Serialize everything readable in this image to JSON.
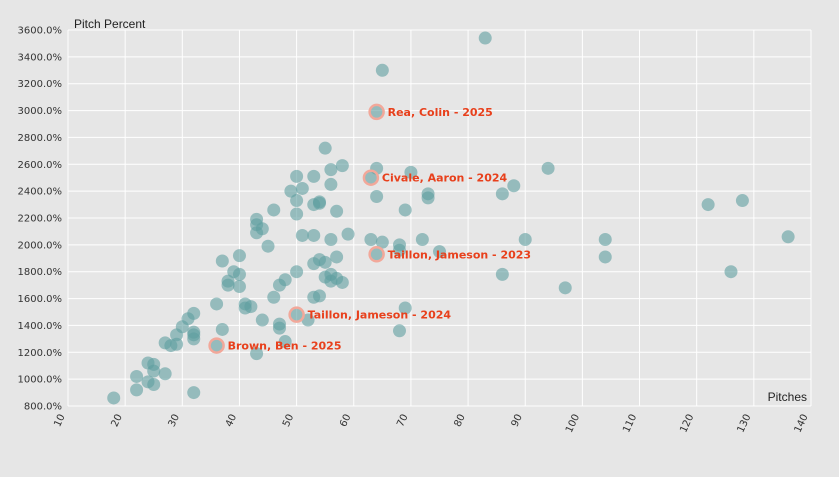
{
  "chart_data": {
    "type": "scatter",
    "title": "",
    "xlabel": "Pitches",
    "ylabel": "Pitch Percent",
    "xlim": [
      10,
      140
    ],
    "ylim": [
      800,
      3600
    ],
    "x_ticks": [
      "10",
      "20",
      "30",
      "40",
      "50",
      "60",
      "70",
      "80",
      "90",
      "100",
      "110",
      "120",
      "130",
      "140"
    ],
    "y_ticks": [
      "800.0%",
      "1000.0%",
      "1200.0%",
      "1400.0%",
      "1600.0%",
      "1800.0%",
      "2000.0%",
      "2200.0%",
      "2400.0%",
      "2600.0%",
      "2800.0%",
      "3000.0%",
      "3200.0%",
      "3400.0%",
      "3600.0%"
    ],
    "grid": true,
    "colors": {
      "point": "#5f9ea0",
      "highlight_ring": "#f2a89a",
      "highlight_text": "#e8401c"
    },
    "points": [
      [
        18,
        860
      ],
      [
        22,
        920
      ],
      [
        22,
        1020
      ],
      [
        24,
        980
      ],
      [
        24,
        1120
      ],
      [
        25,
        960
      ],
      [
        25,
        1060
      ],
      [
        25,
        1110
      ],
      [
        27,
        1040
      ],
      [
        27,
        1270
      ],
      [
        28,
        1250
      ],
      [
        29,
        1260
      ],
      [
        29,
        1330
      ],
      [
        30,
        1390
      ],
      [
        31,
        1450
      ],
      [
        32,
        1300
      ],
      [
        32,
        1330
      ],
      [
        32,
        1350
      ],
      [
        32,
        1490
      ],
      [
        32,
        900
      ],
      [
        37,
        1370
      ],
      [
        37,
        1880
      ],
      [
        36,
        1560
      ],
      [
        38,
        1730
      ],
      [
        38,
        1700
      ],
      [
        39,
        1800
      ],
      [
        40,
        1780
      ],
      [
        40,
        1690
      ],
      [
        40,
        1920
      ],
      [
        41,
        1530
      ],
      [
        41,
        1560
      ],
      [
        42,
        1540
      ],
      [
        43,
        1190
      ],
      [
        43,
        2190
      ],
      [
        43,
        2150
      ],
      [
        43,
        2090
      ],
      [
        44,
        2120
      ],
      [
        44,
        1440
      ],
      [
        45,
        1990
      ],
      [
        46,
        1610
      ],
      [
        46,
        2260
      ],
      [
        47,
        1700
      ],
      [
        47,
        1380
      ],
      [
        47,
        1410
      ],
      [
        48,
        1280
      ],
      [
        48,
        1740
      ],
      [
        49,
        2400
      ],
      [
        50,
        2510
      ],
      [
        50,
        2330
      ],
      [
        50,
        2230
      ],
      [
        50,
        1800
      ],
      [
        51,
        2070
      ],
      [
        51,
        2420
      ],
      [
        52,
        1440
      ],
      [
        53,
        2510
      ],
      [
        53,
        2300
      ],
      [
        53,
        2070
      ],
      [
        53,
        1860
      ],
      [
        53,
        1610
      ],
      [
        54,
        2320
      ],
      [
        54,
        2310
      ],
      [
        54,
        1890
      ],
      [
        54,
        1620
      ],
      [
        55,
        2720
      ],
      [
        55,
        1760
      ],
      [
        55,
        1870
      ],
      [
        56,
        2450
      ],
      [
        56,
        2560
      ],
      [
        56,
        2040
      ],
      [
        56,
        1730
      ],
      [
        56,
        1780
      ],
      [
        57,
        2250
      ],
      [
        57,
        1910
      ],
      [
        57,
        1750
      ],
      [
        58,
        2590
      ],
      [
        58,
        1720
      ],
      [
        59,
        2080
      ],
      [
        63,
        2040
      ],
      [
        64,
        2360
      ],
      [
        64,
        2570
      ],
      [
        65,
        2020
      ],
      [
        65,
        3300
      ],
      [
        68,
        2000
      ],
      [
        68,
        1960
      ],
      [
        69,
        2260
      ],
      [
        69,
        1530
      ],
      [
        68,
        1360
      ],
      [
        70,
        2540
      ],
      [
        72,
        2040
      ],
      [
        73,
        2380
      ],
      [
        73,
        2350
      ],
      [
        75,
        1950
      ],
      [
        83,
        3540
      ],
      [
        86,
        2380
      ],
      [
        86,
        1780
      ],
      [
        88,
        2440
      ],
      [
        90,
        2040
      ],
      [
        94,
        2570
      ],
      [
        97,
        1680
      ],
      [
        104,
        2040
      ],
      [
        104,
        1910
      ],
      [
        122,
        2300
      ],
      [
        126,
        1800
      ],
      [
        128,
        2330
      ],
      [
        136,
        2060
      ]
    ],
    "highlights": [
      {
        "x": 64,
        "y": 2990,
        "label": "Rea, Colin - 2025"
      },
      {
        "x": 63,
        "y": 2500,
        "label": "Civale, Aaron - 2024"
      },
      {
        "x": 64,
        "y": 1930,
        "label": "Taillon, Jameson - 2023"
      },
      {
        "x": 50,
        "y": 1480,
        "label": "Taillon, Jameson - 2024"
      },
      {
        "x": 36,
        "y": 1250,
        "label": "Brown, Ben - 2025"
      }
    ]
  }
}
